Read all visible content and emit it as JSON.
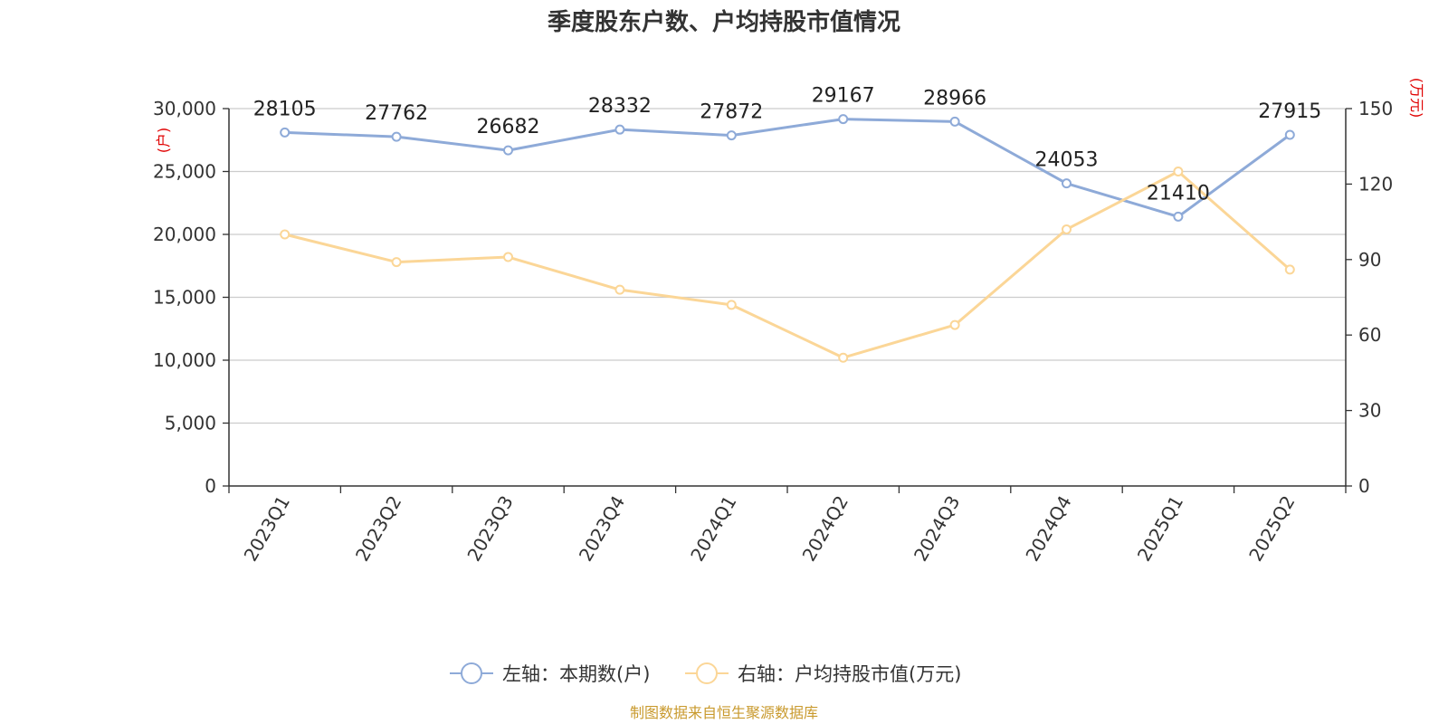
{
  "chart_data": {
    "type": "line",
    "title": "季度股东户数、户均持股市值情况",
    "categories": [
      "2023Q1",
      "2023Q2",
      "2023Q3",
      "2023Q4",
      "2024Q1",
      "2024Q2",
      "2024Q3",
      "2024Q4",
      "2025Q1",
      "2025Q2"
    ],
    "left_axis": {
      "unit": "(户)",
      "ylim": [
        0,
        30000
      ],
      "ticks": [
        0,
        5000,
        10000,
        15000,
        20000,
        25000,
        30000
      ],
      "tick_labels": [
        "0",
        "5,000",
        "10,000",
        "15,000",
        "20,000",
        "25,000",
        "30,000"
      ]
    },
    "right_axis": {
      "unit": "(万元)",
      "ylim": [
        0,
        150
      ],
      "ticks": [
        0,
        30,
        60,
        90,
        120,
        150
      ],
      "tick_labels": [
        "0",
        "30",
        "60",
        "90",
        "120",
        "150"
      ]
    },
    "series": [
      {
        "name": "左轴：本期数(户)",
        "axis": "left",
        "color": "#8eaad8",
        "values": [
          28105,
          27762,
          26682,
          28332,
          27872,
          29167,
          28966,
          24053,
          21410,
          27915
        ],
        "labels": [
          "28105",
          "27762",
          "26682",
          "28332",
          "27872",
          "29167",
          "28966",
          "24053",
          "21410",
          "27915"
        ]
      },
      {
        "name": "右轴：户均持股市值(万元)",
        "axis": "right",
        "color": "#fbd697",
        "values": [
          100,
          89,
          91,
          78,
          72,
          51,
          64,
          102,
          125,
          86
        ]
      }
    ],
    "grid": true,
    "legend_position": "bottom"
  },
  "source": "制图数据来自恒生聚源数据库"
}
